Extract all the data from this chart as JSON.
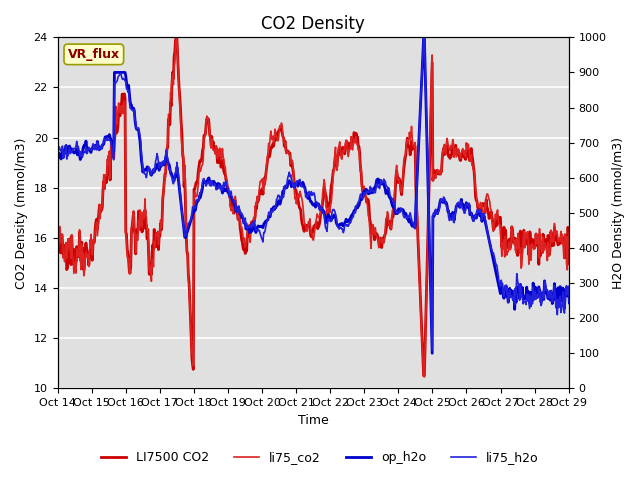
{
  "title": "CO2 Density",
  "xlabel": "Time",
  "ylabel_left": "CO2 Density (mmol/m3)",
  "ylabel_right": "H2O Density (mmol/m3)",
  "ylim_left": [
    10,
    24
  ],
  "ylim_right": [
    0,
    1000
  ],
  "yticks_left": [
    10,
    12,
    14,
    16,
    18,
    20,
    22,
    24
  ],
  "yticks_right": [
    0,
    100,
    200,
    300,
    400,
    500,
    600,
    700,
    800,
    900,
    1000
  ],
  "xtick_labels": [
    "Oct 14",
    "Oct 15",
    "Oct 16",
    "Oct 17",
    "Oct 18",
    "Oct 19",
    "Oct 20",
    "Oct 21",
    "Oct 22",
    "Oct 23",
    "Oct 24",
    "Oct 25",
    "Oct 26",
    "Oct 27",
    "Oct 28",
    "Oct 29"
  ],
  "legend_labels": [
    "LI7500 CO2",
    "li75_co2",
    "op_h2o",
    "li75_h2o"
  ],
  "co2_thick_color": "#cc0000",
  "co2_thin_color": "#dd2222",
  "h2o_thick_color": "#0000cc",
  "h2o_thin_color": "#2222dd",
  "vr_flux_label": "VR_flux",
  "plot_bg_color": "#e0e0e0",
  "grid_color": "white",
  "title_fontsize": 12,
  "label_fontsize": 9
}
